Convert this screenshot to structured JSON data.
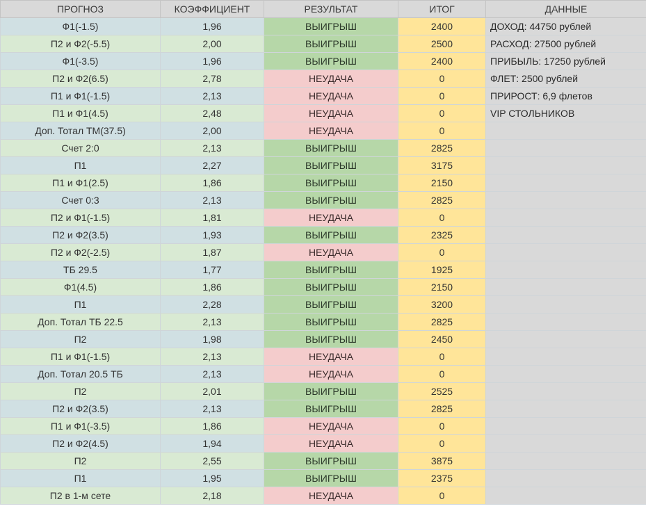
{
  "header": {
    "col_prognoz": "ПРОГНОЗ",
    "col_koef": "КОЭФФИЦИЕНТ",
    "col_result": "РЕЗУЛЬТАТ",
    "col_itog": "ИТОГ",
    "col_data": "ДАННЫЕ"
  },
  "colors": {
    "row_blue": "#d0e0e3",
    "row_green": "#d9ead3",
    "win": "#b6d7a8",
    "loss": "#f4cccc",
    "itog": "#ffe599",
    "header": "#d9d9d9"
  },
  "data_panel": [
    "ДОХОД: 44750 рублей",
    "РАСХОД: 27500 рублей",
    "ПРИБЫЛЬ: 17250 рублей",
    "ФЛЕТ: 2500 рублей",
    "ПРИРОСТ: 6,9 флетов",
    "VIP СТОЛЬНИКОВ"
  ],
  "rows": [
    {
      "prognoz": "Ф1(-1.5)",
      "koef": "1,96",
      "result": "ВЫИГРЫШ",
      "itog": "2400",
      "win": true,
      "tone": "blue"
    },
    {
      "prognoz": "П2 и Ф2(-5.5)",
      "koef": "2,00",
      "result": "ВЫИГРЫШ",
      "itog": "2500",
      "win": true,
      "tone": "green"
    },
    {
      "prognoz": "Ф1(-3.5)",
      "koef": "1,96",
      "result": "ВЫИГРЫШ",
      "itog": "2400",
      "win": true,
      "tone": "blue"
    },
    {
      "prognoz": "П2 и Ф2(6.5)",
      "koef": "2,78",
      "result": "НЕУДАЧА",
      "itog": "0",
      "win": false,
      "tone": "green"
    },
    {
      "prognoz": "П1 и Ф1(-1.5)",
      "koef": "2,13",
      "result": "НЕУДАЧА",
      "itog": "0",
      "win": false,
      "tone": "blue"
    },
    {
      "prognoz": "П1 и Ф1(4.5)",
      "koef": "2,48",
      "result": "НЕУДАЧА",
      "itog": "0",
      "win": false,
      "tone": "green"
    },
    {
      "prognoz": "Доп. Тотал ТМ(37.5)",
      "koef": "2,00",
      "result": "НЕУДАЧА",
      "itog": "0",
      "win": false,
      "tone": "blue"
    },
    {
      "prognoz": "Счет 2:0",
      "koef": "2,13",
      "result": "ВЫИГРЫШ",
      "itog": "2825",
      "win": true,
      "tone": "green"
    },
    {
      "prognoz": "П1",
      "koef": "2,27",
      "result": "ВЫИГРЫШ",
      "itog": "3175",
      "win": true,
      "tone": "blue"
    },
    {
      "prognoz": "П1 и Ф1(2.5)",
      "koef": "1,86",
      "result": "ВЫИГРЫШ",
      "itog": "2150",
      "win": true,
      "tone": "green"
    },
    {
      "prognoz": "Счет 0:3",
      "koef": "2,13",
      "result": "ВЫИГРЫШ",
      "itog": "2825",
      "win": true,
      "tone": "blue"
    },
    {
      "prognoz": "П2 и Ф1(-1.5)",
      "koef": "1,81",
      "result": "НЕУДАЧА",
      "itog": "0",
      "win": false,
      "tone": "green"
    },
    {
      "prognoz": "П2 и Ф2(3.5)",
      "koef": "1,93",
      "result": "ВЫИГРЫШ",
      "itog": "2325",
      "win": true,
      "tone": "blue"
    },
    {
      "prognoz": "П2 и Ф2(-2.5)",
      "koef": "1,87",
      "result": "НЕУДАЧА",
      "itog": "0",
      "win": false,
      "tone": "green"
    },
    {
      "prognoz": "ТБ 29.5",
      "koef": "1,77",
      "result": "ВЫИГРЫШ",
      "itog": "1925",
      "win": true,
      "tone": "blue"
    },
    {
      "prognoz": "Ф1(4.5)",
      "koef": "1,86",
      "result": "ВЫИГРЫШ",
      "itog": "2150",
      "win": true,
      "tone": "green"
    },
    {
      "prognoz": "П1",
      "koef": "2,28",
      "result": "ВЫИГРЫШ",
      "itog": "3200",
      "win": true,
      "tone": "blue"
    },
    {
      "prognoz": "Доп. Тотал ТБ 22.5",
      "koef": "2,13",
      "result": "ВЫИГРЫШ",
      "itog": "2825",
      "win": true,
      "tone": "green"
    },
    {
      "prognoz": "П2",
      "koef": "1,98",
      "result": "ВЫИГРЫШ",
      "itog": "2450",
      "win": true,
      "tone": "blue"
    },
    {
      "prognoz": "П1 и Ф1(-1.5)",
      "koef": "2,13",
      "result": "НЕУДАЧА",
      "itog": "0",
      "win": false,
      "tone": "green"
    },
    {
      "prognoz": "Доп. Тотал 20.5 ТБ",
      "koef": "2,13",
      "result": "НЕУДАЧА",
      "itog": "0",
      "win": false,
      "tone": "blue"
    },
    {
      "prognoz": "П2",
      "koef": "2,01",
      "result": "ВЫИГРЫШ",
      "itog": "2525",
      "win": true,
      "tone": "green"
    },
    {
      "prognoz": "П2 и Ф2(3.5)",
      "koef": "2,13",
      "result": "ВЫИГРЫШ",
      "itog": "2825",
      "win": true,
      "tone": "blue"
    },
    {
      "prognoz": "П1 и Ф1(-3.5)",
      "koef": "1,86",
      "result": "НЕУДАЧА",
      "itog": "0",
      "win": false,
      "tone": "green"
    },
    {
      "prognoz": "П2 и Ф2(4.5)",
      "koef": "1,94",
      "result": "НЕУДАЧА",
      "itog": "0",
      "win": false,
      "tone": "blue"
    },
    {
      "prognoz": "П2",
      "koef": "2,55",
      "result": "ВЫИГРЫШ",
      "itog": "3875",
      "win": true,
      "tone": "green"
    },
    {
      "prognoz": "П1",
      "koef": "1,95",
      "result": "ВЫИГРЫШ",
      "itog": "2375",
      "win": true,
      "tone": "blue"
    },
    {
      "prognoz": "П2 в 1-м сете",
      "koef": "2,18",
      "result": "НЕУДАЧА",
      "itog": "0",
      "win": false,
      "tone": "green"
    }
  ]
}
